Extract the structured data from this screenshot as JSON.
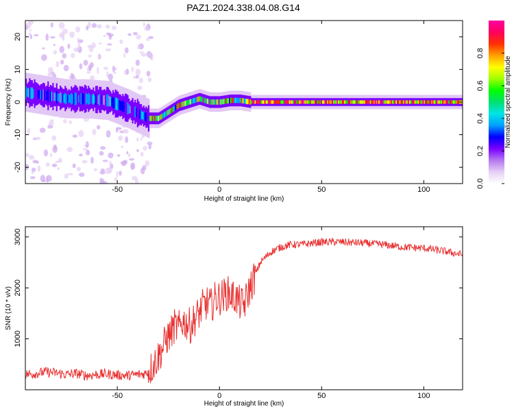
{
  "title": "PAZ1.2024.338.04.08.G14",
  "chart_data": [
    {
      "type": "heatmap",
      "xlabel": "Height of straight line (km)",
      "ylabel": "Frequency (Hz)",
      "xlim": [
        -95,
        119
      ],
      "ylim": [
        -25,
        25
      ],
      "xticks": [
        -50,
        0,
        50,
        100
      ],
      "yticks": [
        -20,
        -10,
        0,
        10,
        20
      ],
      "colorbar": {
        "label": "Normalized spectral amplitude",
        "range": [
          0,
          1
        ],
        "ticks": [
          0.0,
          0.2,
          0.4,
          0.6,
          0.8
        ],
        "colormap": [
          "#ffffff",
          "#e6d0f5",
          "#b478f0",
          "#7a00ff",
          "#0000ff",
          "#00a0ff",
          "#00e5e5",
          "#00e070",
          "#00ff00",
          "#a0ff00",
          "#ffff00",
          "#ffa000",
          "#ff3000",
          "#ff0060",
          "#ff00a0"
        ]
      },
      "ridge_frequency": {
        "x": [
          -95,
          -85,
          -75,
          -65,
          -55,
          -45,
          -40,
          -35,
          -30,
          -25,
          -20,
          -15,
          -10,
          -5,
          0,
          5,
          10,
          15,
          20,
          50,
          80,
          100,
          119
        ],
        "y": [
          3,
          2,
          1,
          1,
          0.5,
          -2,
          -3.5,
          -5,
          -5,
          -3,
          -1,
          0,
          1,
          0,
          0,
          0.5,
          0.5,
          0,
          0,
          0,
          0,
          0,
          0
        ]
      }
    },
    {
      "type": "line",
      "xlabel": "Height of straight line (km)",
      "ylabel": "SNR (10 * v/v)",
      "xlim": [
        -95,
        119
      ],
      "ylim": [
        0,
        3200
      ],
      "xticks": [
        -50,
        0,
        50,
        100
      ],
      "yticks": [
        1000,
        2000,
        3000
      ],
      "series_color": "#e83030",
      "x": [
        -95,
        -90,
        -85,
        -80,
        -75,
        -70,
        -65,
        -60,
        -55,
        -50,
        -45,
        -40,
        -37,
        -35,
        -33,
        -30,
        -28,
        -26,
        -24,
        -22,
        -20,
        -18,
        -16,
        -14,
        -12,
        -10,
        -8,
        -6,
        -4,
        -2,
        0,
        2,
        4,
        6,
        8,
        10,
        12,
        14,
        16,
        18,
        20,
        25,
        30,
        35,
        40,
        50,
        60,
        70,
        80,
        90,
        100,
        110,
        119
      ],
      "y": [
        300,
        320,
        350,
        330,
        300,
        320,
        280,
        300,
        310,
        290,
        280,
        300,
        310,
        350,
        450,
        650,
        800,
        1000,
        1100,
        1250,
        1200,
        1350,
        1300,
        1250,
        1400,
        1500,
        1650,
        1700,
        1650,
        1800,
        1800,
        1850,
        1900,
        1850,
        1800,
        1700,
        1650,
        1900,
        2100,
        2300,
        2500,
        2700,
        2800,
        2850,
        2850,
        2900,
        2900,
        2880,
        2850,
        2800,
        2780,
        2720,
        2650
      ]
    }
  ]
}
